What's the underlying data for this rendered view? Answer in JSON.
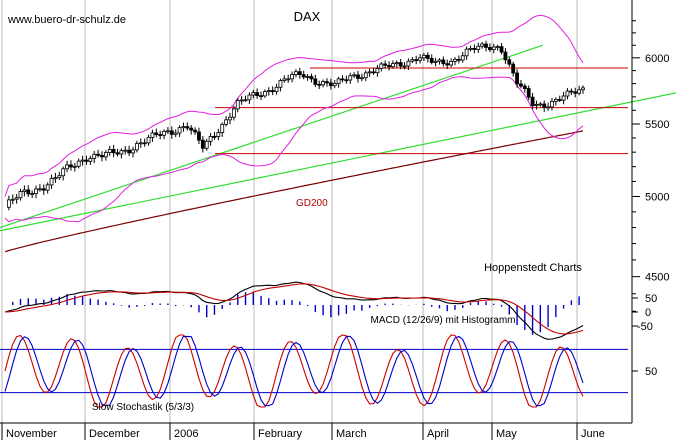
{
  "chart_data": [
    {
      "type": "line",
      "title": "DAX",
      "watermark": "www.buero-dr-schulz.de",
      "source": "Hoppenstedt Charts",
      "y_ticks": [
        4500,
        5000,
        5500,
        6000
      ],
      "ylim": [
        4200,
        6400
      ],
      "x_labels": [
        "November",
        "December",
        "2006",
        "February",
        "March",
        "April",
        "May",
        "June"
      ],
      "scale": "log",
      "grid": "vertical",
      "dax_close_weekly": [
        4930,
        5010,
        5060,
        5110,
        5200,
        5280,
        5270,
        5300,
        5360,
        5400,
        5450,
        5500,
        5320,
        5480,
        5640,
        5700,
        5760,
        5830,
        5870,
        5820,
        5780,
        5860,
        5890,
        5920,
        5960,
        6010,
        5950,
        5980,
        6050,
        6080,
        6100,
        5800,
        5640,
        5660,
        5700,
        5760
      ],
      "horizontal_lines": [
        {
          "value": 5920,
          "color": "#d00000"
        },
        {
          "value": 5620,
          "color": "#d00000"
        },
        {
          "value": 5290,
          "color": "#d00000"
        }
      ],
      "gd200": {
        "label": "GD200",
        "color": "#7a0000",
        "start": 4650,
        "end": 5450
      },
      "bollinger_color": "#e020e0",
      "trendlines": [
        {
          "from": 4800,
          "to": 6100,
          "color": "#33dd33"
        },
        {
          "from": 4780,
          "to": 5730,
          "color": "#33dd33"
        }
      ]
    },
    {
      "type": "line",
      "title": "MACD (12/26/9) mit Histogramm",
      "y_ticks": [
        50,
        0,
        -50
      ],
      "ylim": [
        -80,
        80
      ],
      "series_colors": {
        "macd": "#000000",
        "signal": "#c00000",
        "histogram": "#0000cc"
      }
    },
    {
      "type": "line",
      "title": "Slow Stochastik (5/3/3)",
      "y_ticks": [
        50
      ],
      "ylim": [
        0,
        100
      ],
      "reference_lines": [
        80,
        20
      ],
      "series_colors": {
        "k": "#cc0000",
        "d": "#0000cc",
        "reference": "#0000cc"
      }
    }
  ]
}
